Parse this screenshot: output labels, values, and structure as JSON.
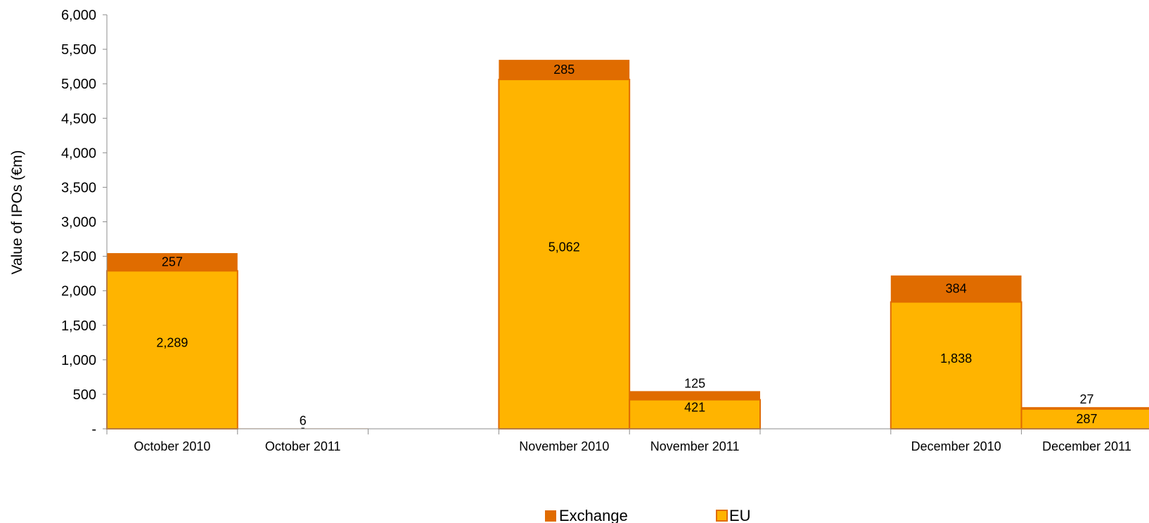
{
  "chart_data": {
    "type": "bar",
    "stacked": true,
    "ylabel": "Value of IPOs (€m)",
    "ylim": [
      0,
      6000
    ],
    "ytick_values": [
      0,
      500,
      1000,
      1500,
      2000,
      2500,
      3000,
      3500,
      4000,
      4500,
      5000,
      5500,
      6000
    ],
    "ytick_labels": [
      "-",
      "500",
      "1,000",
      "1,500",
      "2,000",
      "2,500",
      "3,000",
      "3,500",
      "4,000",
      "4,500",
      "5,000",
      "5,500",
      "6,000"
    ],
    "grid": false,
    "legend_position": "bottom",
    "categories": [
      "October 2010",
      "October 2011",
      "November 2010",
      "November 2011",
      "December 2010",
      "December 2011"
    ],
    "series": [
      {
        "name": "EU",
        "color": "#FFB400",
        "values": [
          2289,
          0,
          5062,
          421,
          1838,
          287
        ],
        "labels": [
          "2,289",
          "-",
          "5,062",
          "421",
          "1,838",
          "287"
        ]
      },
      {
        "name": "Exchange",
        "color": "#E06C00",
        "values": [
          257,
          6,
          285,
          125,
          384,
          27
        ],
        "labels": [
          "257",
          "6",
          "285",
          "125",
          "384",
          "27"
        ]
      }
    ],
    "legend": [
      "Exchange",
      "EU"
    ]
  }
}
